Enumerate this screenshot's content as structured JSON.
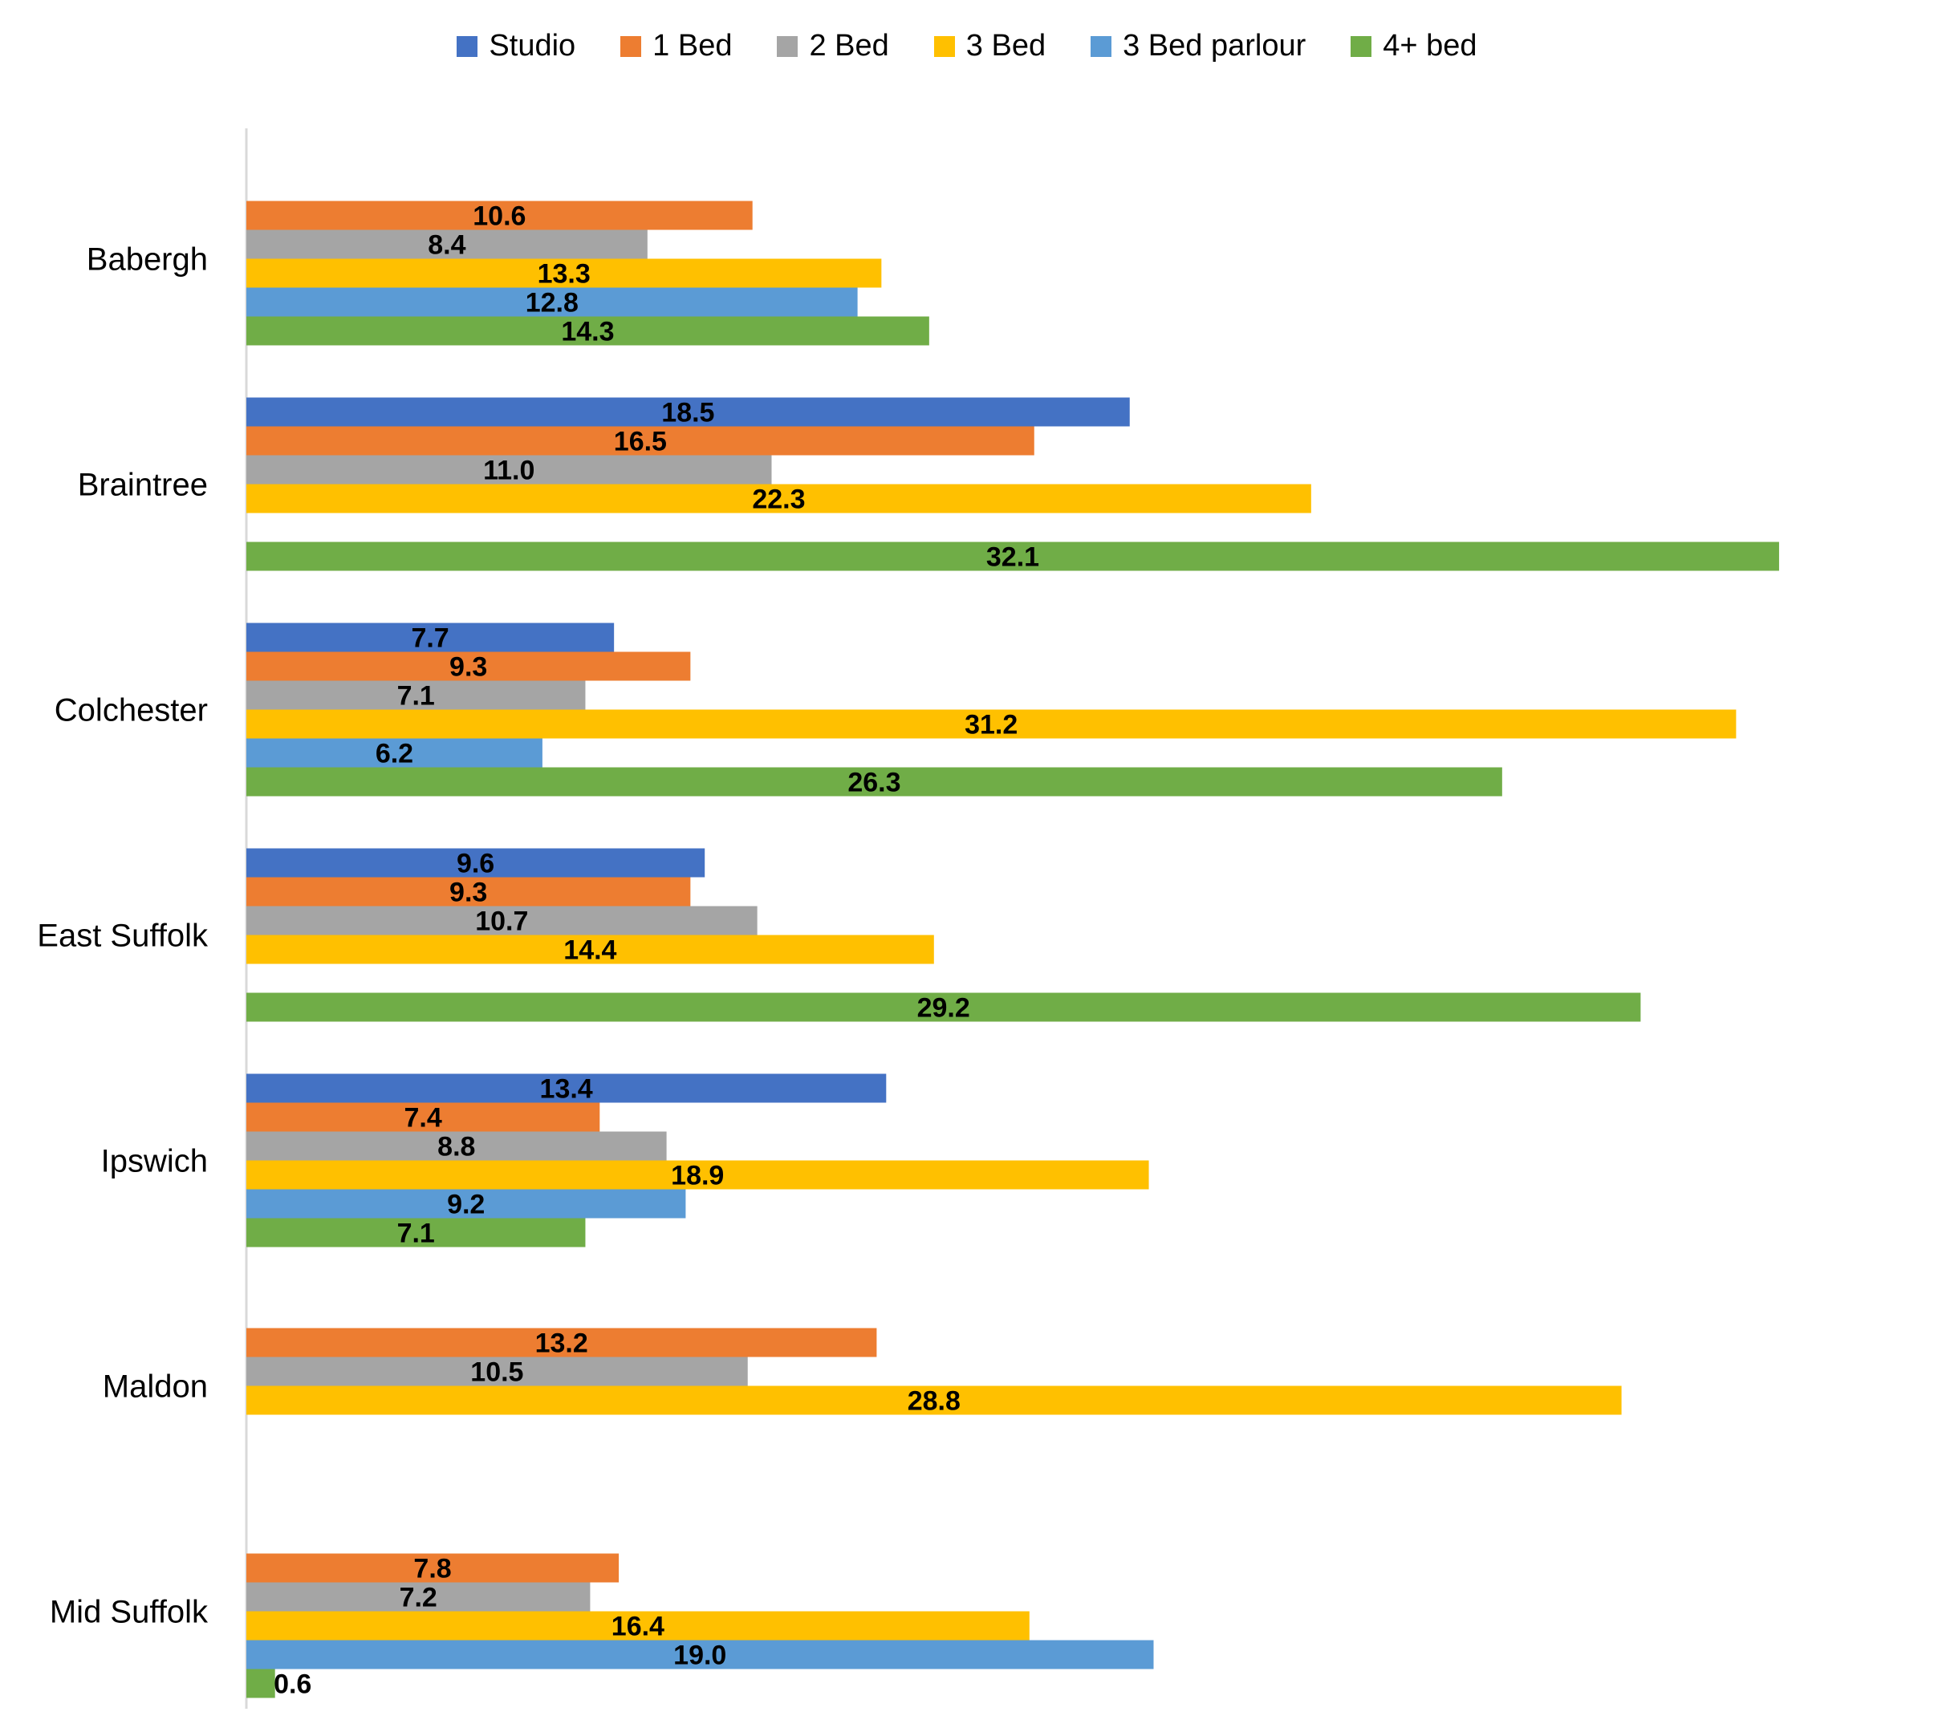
{
  "chart_data": {
    "type": "bar",
    "orientation": "horizontal",
    "categories": [
      "Babergh",
      "Braintree",
      "Colchester",
      "East Suffolk",
      "Ipswich",
      "Maldon",
      "Mid Suffolk"
    ],
    "series": [
      {
        "name": "Studio",
        "color": "#4472C4",
        "values": [
          null,
          18.5,
          7.7,
          9.6,
          13.4,
          null,
          null
        ],
        "labels": [
          null,
          "18.5",
          "7.7",
          "9.6",
          "13.4",
          null,
          null
        ]
      },
      {
        "name": "1 Bed",
        "color": "#ED7D31",
        "values": [
          10.6,
          16.5,
          9.3,
          9.3,
          7.4,
          13.2,
          7.8
        ],
        "labels": [
          "10.6",
          "16.5",
          "9.3",
          "9.3",
          "7.4",
          "13.2",
          "7.8"
        ]
      },
      {
        "name": "2 Bed",
        "color": "#A5A5A5",
        "values": [
          8.4,
          11.0,
          7.1,
          10.7,
          8.8,
          10.5,
          7.2
        ],
        "labels": [
          "8.4",
          "11.0",
          "7.1",
          "10.7",
          "8.8",
          "10.5",
          "7.2"
        ]
      },
      {
        "name": "3 Bed",
        "color": "#FFC000",
        "values": [
          13.3,
          22.3,
          31.2,
          14.4,
          18.9,
          28.8,
          16.4
        ],
        "labels": [
          "13.3",
          "22.3",
          "31.2",
          "14.4",
          "18.9",
          "28.8",
          "16.4"
        ]
      },
      {
        "name": "3 Bed parlour",
        "color": "#5B9BD5",
        "values": [
          12.8,
          null,
          6.2,
          null,
          9.2,
          null,
          19.0
        ],
        "labels": [
          "12.8",
          null,
          "6.2",
          null,
          "9.2",
          null,
          "19.0"
        ]
      },
      {
        "name": "4+ bed",
        "color": "#70AD47",
        "values": [
          14.3,
          32.1,
          26.3,
          29.2,
          7.1,
          null,
          0.6
        ],
        "labels": [
          "14.3",
          "32.1",
          "26.3",
          "29.2",
          "7.1",
          null,
          "0.6"
        ]
      }
    ],
    "xlim": [
      0,
      32.1
    ],
    "legend_position": "top",
    "gridlines": false
  }
}
